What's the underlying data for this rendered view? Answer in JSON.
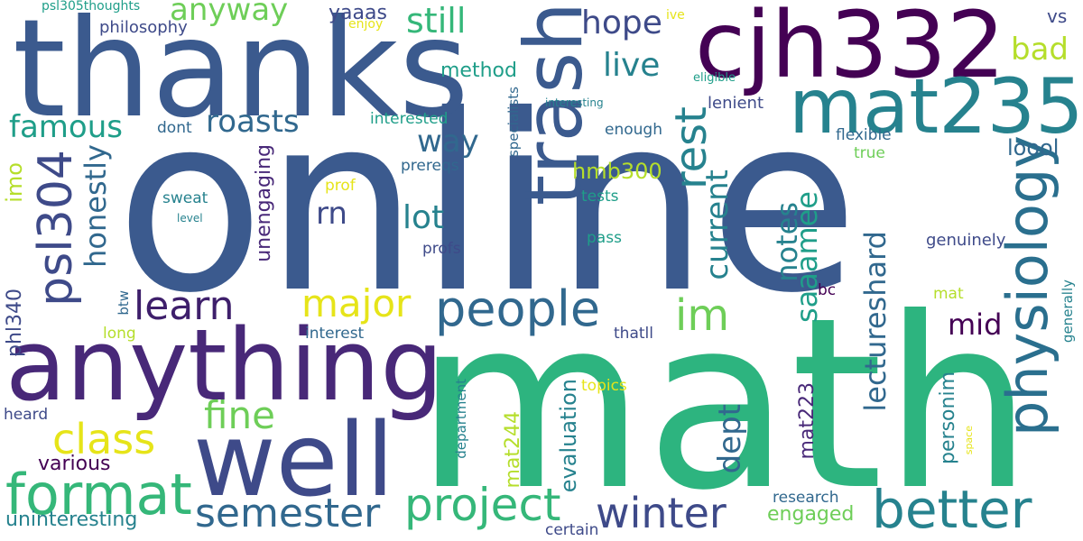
{
  "palette": {
    "background": "#ffffff",
    "dark_purple": "#440154",
    "indigo": "#482878",
    "slate_blue": "#3e4a89",
    "steel_blue": "#31688e",
    "teal_blue": "#26828e",
    "teal": "#1f9e89",
    "sea_green": "#35b779",
    "green": "#6ece58",
    "lime": "#b5de2b",
    "yellow": "#e6e419"
  },
  "words": [
    {
      "text": "online",
      "weight": 1.0
    },
    {
      "text": "math",
      "weight": 0.95
    },
    {
      "text": "thanks",
      "weight": 0.58
    },
    {
      "text": "anything",
      "weight": 0.52
    },
    {
      "text": "cjh332",
      "weight": 0.48
    },
    {
      "text": "well",
      "weight": 0.46
    },
    {
      "text": "trash",
      "weight": 0.42
    },
    {
      "text": "mat235",
      "weight": 0.41
    },
    {
      "text": "physiology",
      "weight": 0.38
    },
    {
      "text": "psl304",
      "weight": 0.34
    },
    {
      "text": "format",
      "weight": 0.32
    },
    {
      "text": "better",
      "weight": 0.31
    },
    {
      "text": "people",
      "weight": 0.3
    },
    {
      "text": "project",
      "weight": 0.28
    },
    {
      "text": "semester",
      "weight": 0.26
    },
    {
      "text": "winter",
      "weight": 0.26
    },
    {
      "text": "im",
      "weight": 0.26
    },
    {
      "text": "class",
      "weight": 0.24
    },
    {
      "text": "learn",
      "weight": 0.24
    },
    {
      "text": "rest",
      "weight": 0.23
    },
    {
      "text": "major",
      "weight": 0.22
    },
    {
      "text": "fine",
      "weight": 0.22
    },
    {
      "text": "anyway",
      "weight": 0.2
    },
    {
      "text": "lectureshard",
      "weight": 0.2
    },
    {
      "text": "hope",
      "weight": 0.19
    },
    {
      "text": "still",
      "weight": 0.19
    },
    {
      "text": "honestly",
      "weight": 0.19
    },
    {
      "text": "famous",
      "weight": 0.18
    },
    {
      "text": "roasts",
      "weight": 0.18
    },
    {
      "text": "saaamee",
      "weight": 0.18
    },
    {
      "text": "live",
      "weight": 0.17
    },
    {
      "text": "way",
      "weight": 0.17
    },
    {
      "text": "lot",
      "weight": 0.17
    },
    {
      "text": "current",
      "weight": 0.17
    },
    {
      "text": "bad",
      "weight": 0.17
    },
    {
      "text": "dept",
      "weight": 0.17
    },
    {
      "text": "rn",
      "weight": 0.16
    },
    {
      "text": "notes",
      "weight": 0.16
    },
    {
      "text": "mid",
      "weight": 0.16
    },
    {
      "text": "loool",
      "weight": 0.13
    },
    {
      "text": "evaluation",
      "weight": 0.13
    },
    {
      "text": "mat244",
      "weight": 0.12
    },
    {
      "text": "imo",
      "weight": 0.12
    },
    {
      "text": "mat223",
      "weight": 0.12
    },
    {
      "text": "hmb300",
      "weight": 0.12
    },
    {
      "text": "engaged",
      "weight": 0.12
    },
    {
      "text": "various",
      "weight": 0.12
    },
    {
      "text": "unengaging",
      "weight": 0.12
    },
    {
      "text": "uninteresting",
      "weight": 0.11
    },
    {
      "text": "personim",
      "weight": 0.11
    },
    {
      "text": "method",
      "weight": 0.11
    },
    {
      "text": "phl340",
      "weight": 0.11
    },
    {
      "text": "yaaas",
      "weight": 0.11
    },
    {
      "text": "vs",
      "weight": 0.1
    },
    {
      "text": "genuinely",
      "weight": 0.1
    },
    {
      "text": "philosophy",
      "weight": 0.1
    },
    {
      "text": "lenient",
      "weight": 0.1
    },
    {
      "text": "interested",
      "weight": 0.1
    },
    {
      "text": "flexible",
      "weight": 0.1
    },
    {
      "text": "research",
      "weight": 0.1
    },
    {
      "text": "certain",
      "weight": 0.1
    },
    {
      "text": "prereqs",
      "weight": 0.1
    },
    {
      "text": "dont",
      "weight": 0.1
    },
    {
      "text": "enough",
      "weight": 0.1
    },
    {
      "text": "sweat",
      "weight": 0.1
    },
    {
      "text": "tests",
      "weight": 0.1
    },
    {
      "text": "profs",
      "weight": 0.1
    },
    {
      "text": "pass",
      "weight": 0.1
    },
    {
      "text": "heard",
      "weight": 0.1
    },
    {
      "text": "interest",
      "weight": 0.1
    },
    {
      "text": "thatll",
      "weight": 0.1
    },
    {
      "text": "topics",
      "weight": 0.1
    },
    {
      "text": "long",
      "weight": 0.1
    },
    {
      "text": "mat",
      "weight": 0.1
    },
    {
      "text": "bc",
      "weight": 0.1
    },
    {
      "text": "true",
      "weight": 0.1
    },
    {
      "text": "prof",
      "weight": 0.1
    },
    {
      "text": "specialists",
      "weight": 0.09
    },
    {
      "text": "department",
      "weight": 0.09
    },
    {
      "text": "generally",
      "weight": 0.09
    },
    {
      "text": "btw",
      "weight": 0.09
    },
    {
      "text": "psl305thoughts",
      "weight": 0.08
    },
    {
      "text": "enjoy",
      "weight": 0.08
    },
    {
      "text": "ive",
      "weight": 0.08
    },
    {
      "text": "eligible",
      "weight": 0.08
    },
    {
      "text": "interesting",
      "weight": 0.07
    },
    {
      "text": "level",
      "weight": 0.07
    },
    {
      "text": "space",
      "weight": 0.07
    }
  ]
}
